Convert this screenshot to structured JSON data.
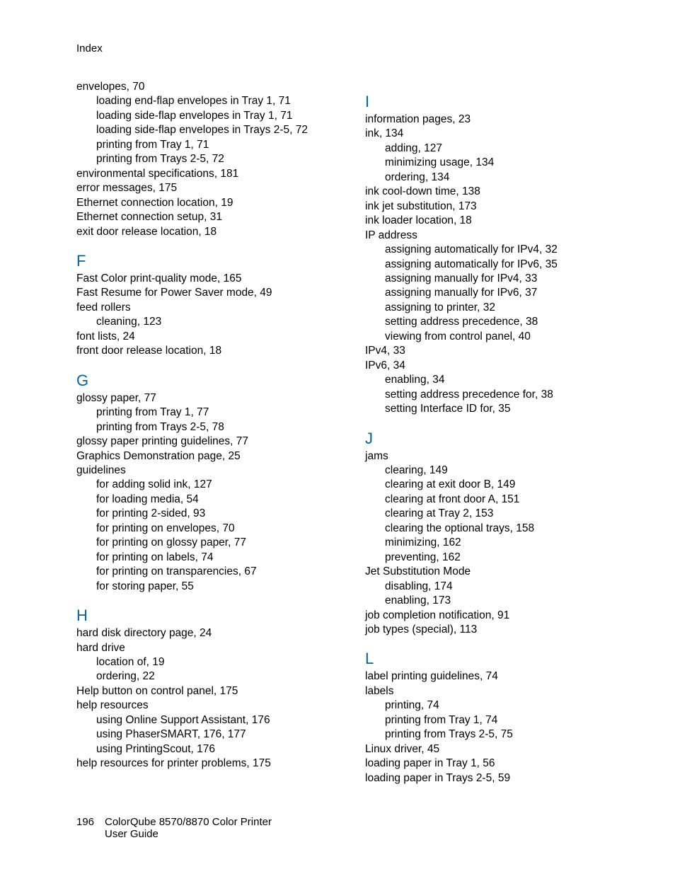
{
  "header": "Index",
  "footer": {
    "page": "196",
    "line1": "ColorQube 8570/8870 Color Printer",
    "line2": "User Guide"
  },
  "left": {
    "pre": [
      {
        "t": "envelopes, 70",
        "s": 0
      },
      {
        "t": "loading end-flap envelopes in Tray 1, 71",
        "s": 1
      },
      {
        "t": "loading side-flap envelopes in Tray 1, 71",
        "s": 1
      },
      {
        "t": "loading side-flap envelopes in Trays 2-5, 72",
        "s": 1
      },
      {
        "t": "printing from Tray 1, 71",
        "s": 1
      },
      {
        "t": "printing from Trays 2-5, 72",
        "s": 1
      },
      {
        "t": "environmental specifications, 181",
        "s": 0
      },
      {
        "t": "error messages, 175",
        "s": 0
      },
      {
        "t": "Ethernet connection location, 19",
        "s": 0
      },
      {
        "t": "Ethernet connection setup, 31",
        "s": 0
      },
      {
        "t": "exit door release location, 18",
        "s": 0
      }
    ],
    "sections": [
      {
        "letter": "F",
        "items": [
          {
            "t": "Fast Color print-quality mode, 165",
            "s": 0
          },
          {
            "t": "Fast Resume for Power Saver mode, 49",
            "s": 0
          },
          {
            "t": "feed rollers",
            "s": 0
          },
          {
            "t": "cleaning, 123",
            "s": 1
          },
          {
            "t": "font lists, 24",
            "s": 0
          },
          {
            "t": "front door release location, 18",
            "s": 0
          }
        ]
      },
      {
        "letter": "G",
        "items": [
          {
            "t": "glossy paper, 77",
            "s": 0
          },
          {
            "t": "printing from Tray 1, 77",
            "s": 1
          },
          {
            "t": "printing from Trays 2-5, 78",
            "s": 1
          },
          {
            "t": "glossy paper printing guidelines, 77",
            "s": 0
          },
          {
            "t": "Graphics Demonstration page, 25",
            "s": 0
          },
          {
            "t": "guidelines",
            "s": 0
          },
          {
            "t": "for adding solid ink, 127",
            "s": 1
          },
          {
            "t": "for loading media, 54",
            "s": 1
          },
          {
            "t": "for printing 2-sided, 93",
            "s": 1
          },
          {
            "t": "for printing on envelopes, 70",
            "s": 1
          },
          {
            "t": "for printing on glossy paper, 77",
            "s": 1
          },
          {
            "t": "for printing on labels, 74",
            "s": 1
          },
          {
            "t": "for printing on transparencies, 67",
            "s": 1
          },
          {
            "t": "for storing paper, 55",
            "s": 1
          }
        ]
      },
      {
        "letter": "H",
        "items": [
          {
            "t": "hard disk directory page, 24",
            "s": 0
          },
          {
            "t": "hard drive",
            "s": 0
          },
          {
            "t": "location of, 19",
            "s": 1
          },
          {
            "t": "ordering, 22",
            "s": 1
          },
          {
            "t": "Help button on control panel, 175",
            "s": 0
          },
          {
            "t": "help resources",
            "s": 0
          },
          {
            "t": "using Online Support Assistant, 176",
            "s": 1
          },
          {
            "t": "using PhaserSMART, 176, 177",
            "s": 1
          },
          {
            "t": "using PrintingScout, 176",
            "s": 1
          },
          {
            "t": "help resources for printer problems, 175",
            "s": 0
          }
        ]
      }
    ]
  },
  "right": {
    "sections": [
      {
        "letter": "I",
        "items": [
          {
            "t": "information pages, 23",
            "s": 0
          },
          {
            "t": "ink, 134",
            "s": 0
          },
          {
            "t": "adding, 127",
            "s": 1
          },
          {
            "t": "minimizing usage, 134",
            "s": 1
          },
          {
            "t": "ordering, 134",
            "s": 1
          },
          {
            "t": "ink cool-down time, 138",
            "s": 0
          },
          {
            "t": "ink jet substitution, 173",
            "s": 0
          },
          {
            "t": "ink loader location, 18",
            "s": 0
          },
          {
            "t": "IP address",
            "s": 0
          },
          {
            "t": "assigning automatically for IPv4, 32",
            "s": 1
          },
          {
            "t": "assigning automatically for IPv6, 35",
            "s": 1
          },
          {
            "t": "assigning manually for IPv4, 33",
            "s": 1
          },
          {
            "t": "assigning manually for IPv6, 37",
            "s": 1
          },
          {
            "t": "assigning to printer, 32",
            "s": 1
          },
          {
            "t": "setting address precedence, 38",
            "s": 1
          },
          {
            "t": "viewing from control panel, 40",
            "s": 1
          },
          {
            "t": "IPv4, 33",
            "s": 0
          },
          {
            "t": "IPv6, 34",
            "s": 0
          },
          {
            "t": "enabling, 34",
            "s": 1
          },
          {
            "t": "setting address precedence for, 38",
            "s": 1
          },
          {
            "t": "setting Interface ID for, 35",
            "s": 1
          }
        ]
      },
      {
        "letter": "J",
        "items": [
          {
            "t": "jams",
            "s": 0
          },
          {
            "t": "clearing, 149",
            "s": 1
          },
          {
            "t": "clearing at exit door B, 149",
            "s": 1
          },
          {
            "t": "clearing at front door A, 151",
            "s": 1
          },
          {
            "t": "clearing at Tray 2, 153",
            "s": 1
          },
          {
            "t": "clearing the optional trays, 158",
            "s": 1
          },
          {
            "t": "minimizing, 162",
            "s": 1
          },
          {
            "t": "preventing, 162",
            "s": 1
          },
          {
            "t": "Jet Substitution Mode",
            "s": 0
          },
          {
            "t": "disabling, 174",
            "s": 1
          },
          {
            "t": "enabling, 173",
            "s": 1
          },
          {
            "t": "job completion notification, 91",
            "s": 0
          },
          {
            "t": "job types (special), 113",
            "s": 0
          }
        ]
      },
      {
        "letter": "L",
        "items": [
          {
            "t": "label printing guidelines, 74",
            "s": 0
          },
          {
            "t": "labels",
            "s": 0
          },
          {
            "t": "printing, 74",
            "s": 1
          },
          {
            "t": "printing from Tray 1, 74",
            "s": 1
          },
          {
            "t": "printing from Trays 2-5, 75",
            "s": 1
          },
          {
            "t": "Linux driver, 45",
            "s": 0
          },
          {
            "t": "loading paper in Tray 1, 56",
            "s": 0
          },
          {
            "t": "loading paper in Trays 2-5, 59",
            "s": 0
          }
        ]
      }
    ]
  }
}
